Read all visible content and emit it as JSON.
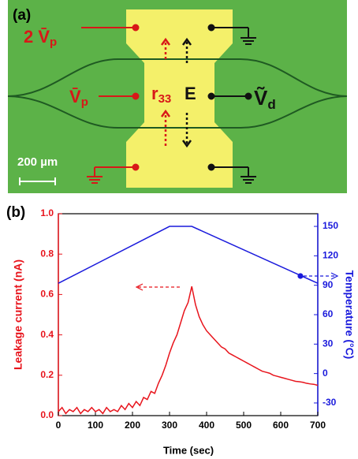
{
  "panel_a": {
    "label": "(a)",
    "labels": [
      {
        "main": "2 V̄",
        "sub": "p"
      },
      {
        "main": "V̄",
        "sub": "p"
      },
      {
        "main": "r",
        "sub": "33"
      },
      {
        "main": "E"
      },
      {
        "main": "Ṽ",
        "sub": "d"
      }
    ],
    "scale_bar": "200 µm"
  },
  "chart_data": {
    "type": "line",
    "panel_label": "(b)",
    "x_label": "Time (sec)",
    "y_label": "Leakage current (nA)",
    "y2_label": "Temperature (°C)",
    "xlim": [
      0,
      700
    ],
    "xticks": [
      0,
      100,
      200,
      300,
      400,
      500,
      600,
      700
    ],
    "ylim": [
      0,
      1.0
    ],
    "yticks": [
      {
        "value": 0,
        "label": "0.0"
      },
      0.2,
      0.4,
      0.6,
      0.8,
      {
        "value": 1.0,
        "label": "1.0"
      }
    ],
    "y2lim": [
      -42.9,
      162.9
    ],
    "y2ticks": [
      -30,
      0,
      30,
      60,
      90,
      120,
      150
    ],
    "series": [
      {
        "name": "Leakage current",
        "color": "#e8141c",
        "x": [
          0,
          10,
          20,
          30,
          40,
          50,
          60,
          70,
          80,
          90,
          100,
          110,
          120,
          130,
          140,
          150,
          160,
          170,
          180,
          190,
          200,
          210,
          220,
          230,
          240,
          250,
          260,
          270,
          280,
          290,
          300,
          310,
          320,
          330,
          340,
          350,
          360,
          370,
          380,
          390,
          400,
          410,
          420,
          430,
          440,
          450,
          460,
          470,
          480,
          490,
          500,
          510,
          520,
          530,
          540,
          550,
          560,
          570,
          580,
          590,
          600,
          610,
          620,
          630,
          640,
          650,
          660,
          670,
          680,
          690,
          700
        ],
        "values": [
          0.02,
          0.04,
          0.01,
          0.03,
          0.02,
          0.04,
          0.01,
          0.03,
          0.02,
          0.04,
          0.02,
          0.03,
          0.01,
          0.04,
          0.02,
          0.03,
          0.02,
          0.05,
          0.03,
          0.06,
          0.04,
          0.07,
          0.05,
          0.09,
          0.08,
          0.12,
          0.11,
          0.16,
          0.2,
          0.25,
          0.31,
          0.36,
          0.4,
          0.46,
          0.52,
          0.56,
          0.64,
          0.55,
          0.49,
          0.45,
          0.42,
          0.4,
          0.38,
          0.36,
          0.34,
          0.33,
          0.31,
          0.3,
          0.29,
          0.28,
          0.27,
          0.26,
          0.25,
          0.24,
          0.23,
          0.22,
          0.215,
          0.21,
          0.2,
          0.195,
          0.19,
          0.185,
          0.18,
          0.175,
          0.17,
          0.168,
          0.165,
          0.16,
          0.157,
          0.155,
          0.15
        ]
      },
      {
        "name": "Temperature",
        "color": "#1a1adc",
        "axis": "y2",
        "x": [
          0,
          300,
          360,
          700
        ],
        "values": [
          92,
          150,
          150,
          92
        ]
      }
    ]
  }
}
